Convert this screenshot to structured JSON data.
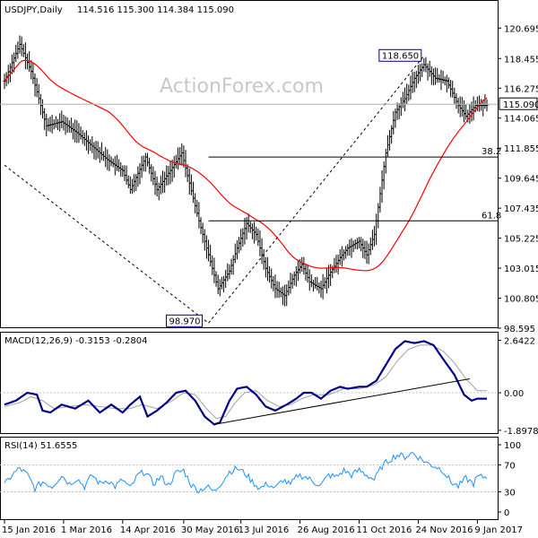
{
  "chart_data": [
    {
      "type": "ohlc",
      "panel": "price",
      "title_symbol": "USDJPY,Daily",
      "title_ohlc": "114.516 115.300 114.384 115.090",
      "watermark": "ActionForex.com",
      "ylim": [
        98.595,
        122.5
      ],
      "yticks": [
        "120.695",
        "118.455",
        "116.275",
        "114.065",
        "111.855",
        "109.645",
        "107.435",
        "105.225",
        "103.015",
        "100.805",
        "98.595"
      ],
      "current_price_label": "115.090",
      "current_price": 115.09,
      "annotations": {
        "high_label": "118.650",
        "low_label": "98.970",
        "fib_382_label": "38.2",
        "fib_618_label": "61.8",
        "fib_382_value": 111.2,
        "fib_618_value": 106.5
      },
      "moving_average_color": "#ff0000",
      "bar_color": "#000000",
      "closes_anchors": [
        [
          0,
          116.8
        ],
        [
          8,
          119.5
        ],
        [
          14,
          117.5
        ],
        [
          22,
          113.5
        ],
        [
          30,
          113.8
        ],
        [
          38,
          113.0
        ],
        [
          46,
          112.0
        ],
        [
          54,
          111.0
        ],
        [
          62,
          110.2
        ],
        [
          66,
          108.8
        ],
        [
          74,
          111.2
        ],
        [
          80,
          108.8
        ],
        [
          86,
          110.0
        ],
        [
          93,
          111.5
        ],
        [
          102,
          106.5
        ],
        [
          107,
          104.0
        ],
        [
          112,
          101.5
        ],
        [
          118,
          102.8
        ],
        [
          122,
          104.5
        ],
        [
          127,
          106.3
        ],
        [
          132,
          105.5
        ],
        [
          137,
          103.0
        ],
        [
          142,
          101.5
        ],
        [
          147,
          101.0
        ],
        [
          152,
          102.5
        ],
        [
          156,
          103.3
        ],
        [
          160,
          102.0
        ],
        [
          166,
          101.5
        ],
        [
          170,
          102.5
        ],
        [
          176,
          103.8
        ],
        [
          180,
          104.5
        ],
        [
          186,
          105.0
        ],
        [
          190,
          104.0
        ],
        [
          194,
          105.5
        ],
        [
          200,
          111.5
        ],
        [
          205,
          114.5
        ],
        [
          210,
          115.5
        ],
        [
          215,
          117.0
        ],
        [
          220,
          118.0
        ],
        [
          226,
          117.0
        ],
        [
          232,
          116.8
        ],
        [
          238,
          115.0
        ],
        [
          242,
          114.2
        ],
        [
          247,
          115.0
        ]
      ]
    },
    {
      "type": "line",
      "panel": "macd",
      "title": "MACD(12,26,9) -0.3153 -0.2804",
      "yticks": [
        "2.6422",
        "0.00",
        "-1.8978"
      ],
      "ylim": [
        -1.9,
        2.8
      ],
      "macd_color": "#00008b",
      "signal_color": "#a0a0a0",
      "macd_anchors": [
        [
          0,
          -0.6
        ],
        [
          6,
          -0.4
        ],
        [
          12,
          0.0
        ],
        [
          17,
          -0.1
        ],
        [
          20,
          -0.9
        ],
        [
          24,
          -1.0
        ],
        [
          30,
          -0.6
        ],
        [
          37,
          -0.8
        ],
        [
          44,
          -0.4
        ],
        [
          50,
          -1.0
        ],
        [
          56,
          -0.6
        ],
        [
          62,
          -1.0
        ],
        [
          66,
          -0.6
        ],
        [
          71,
          -0.2
        ],
        [
          75,
          -1.2
        ],
        [
          80,
          -0.9
        ],
        [
          85,
          -0.5
        ],
        [
          90,
          0.0
        ],
        [
          95,
          0.1
        ],
        [
          100,
          -0.4
        ],
        [
          105,
          -1.2
        ],
        [
          110,
          -1.6
        ],
        [
          113,
          -1.5
        ],
        [
          118,
          -0.4
        ],
        [
          122,
          0.2
        ],
        [
          127,
          0.3
        ],
        [
          132,
          -0.1
        ],
        [
          137,
          -0.7
        ],
        [
          142,
          -0.9
        ],
        [
          148,
          -0.6
        ],
        [
          153,
          -0.3
        ],
        [
          157,
          0.0
        ],
        [
          161,
          0.0
        ],
        [
          166,
          -0.3
        ],
        [
          171,
          0.1
        ],
        [
          176,
          0.3
        ],
        [
          180,
          0.2
        ],
        [
          186,
          0.3
        ],
        [
          190,
          0.3
        ],
        [
          195,
          0.6
        ],
        [
          200,
          1.4
        ],
        [
          205,
          2.2
        ],
        [
          210,
          2.6
        ],
        [
          215,
          2.5
        ],
        [
          220,
          2.6
        ],
        [
          225,
          2.4
        ],
        [
          230,
          1.7
        ],
        [
          236,
          0.9
        ],
        [
          241,
          -0.1
        ],
        [
          245,
          -0.4
        ],
        [
          248,
          -0.3
        ]
      ],
      "signal_anchors": [
        [
          0,
          -0.7
        ],
        [
          8,
          -0.5
        ],
        [
          14,
          -0.2
        ],
        [
          20,
          -0.4
        ],
        [
          26,
          -0.8
        ],
        [
          34,
          -0.7
        ],
        [
          42,
          -0.6
        ],
        [
          50,
          -0.7
        ],
        [
          58,
          -0.8
        ],
        [
          66,
          -0.8
        ],
        [
          72,
          -0.6
        ],
        [
          80,
          -0.8
        ],
        [
          88,
          -0.4
        ],
        [
          94,
          0.0
        ],
        [
          100,
          -0.1
        ],
        [
          106,
          -0.8
        ],
        [
          111,
          -1.3
        ],
        [
          116,
          -1.2
        ],
        [
          121,
          -0.5
        ],
        [
          126,
          0.0
        ],
        [
          132,
          0.1
        ],
        [
          138,
          -0.4
        ],
        [
          144,
          -0.7
        ],
        [
          150,
          -0.6
        ],
        [
          156,
          -0.3
        ],
        [
          162,
          -0.1
        ],
        [
          170,
          -0.1
        ],
        [
          178,
          0.2
        ],
        [
          186,
          0.2
        ],
        [
          194,
          0.4
        ],
        [
          200,
          0.8
        ],
        [
          206,
          1.6
        ],
        [
          212,
          2.2
        ],
        [
          218,
          2.4
        ],
        [
          224,
          2.4
        ],
        [
          230,
          2.1
        ],
        [
          236,
          1.5
        ],
        [
          242,
          0.7
        ],
        [
          248,
          0.1
        ]
      ]
    },
    {
      "type": "line",
      "panel": "rsi",
      "title": "RSI(14) 51.6555",
      "yticks": [
        "100",
        "70",
        "30",
        "0"
      ],
      "ylim": [
        0,
        100
      ],
      "line_color": "#1e90ff",
      "rsi_anchors": [
        [
          0,
          40
        ],
        [
          4,
          55
        ],
        [
          8,
          65
        ],
        [
          12,
          55
        ],
        [
          16,
          35
        ],
        [
          20,
          45
        ],
        [
          25,
          38
        ],
        [
          30,
          55
        ],
        [
          34,
          42
        ],
        [
          38,
          50
        ],
        [
          42,
          38
        ],
        [
          46,
          55
        ],
        [
          50,
          42
        ],
        [
          54,
          48
        ],
        [
          58,
          38
        ],
        [
          62,
          48
        ],
        [
          66,
          35
        ],
        [
          70,
          55
        ],
        [
          74,
          60
        ],
        [
          78,
          42
        ],
        [
          82,
          52
        ],
        [
          86,
          40
        ],
        [
          90,
          58
        ],
        [
          94,
          62
        ],
        [
          98,
          40
        ],
        [
          102,
          32
        ],
        [
          106,
          38
        ],
        [
          110,
          30
        ],
        [
          114,
          45
        ],
        [
          118,
          60
        ],
        [
          122,
          65
        ],
        [
          126,
          58
        ],
        [
          130,
          45
        ],
        [
          134,
          35
        ],
        [
          138,
          42
        ],
        [
          142,
          35
        ],
        [
          146,
          48
        ],
        [
          150,
          40
        ],
        [
          154,
          55
        ],
        [
          158,
          52
        ],
        [
          162,
          45
        ],
        [
          166,
          40
        ],
        [
          170,
          55
        ],
        [
          174,
          52
        ],
        [
          178,
          62
        ],
        [
          182,
          55
        ],
        [
          186,
          62
        ],
        [
          190,
          55
        ],
        [
          194,
          48
        ],
        [
          198,
          68
        ],
        [
          202,
          78
        ],
        [
          206,
          85
        ],
        [
          210,
          82
        ],
        [
          214,
          88
        ],
        [
          218,
          80
        ],
        [
          222,
          72
        ],
        [
          226,
          68
        ],
        [
          230,
          62
        ],
        [
          234,
          45
        ],
        [
          238,
          38
        ],
        [
          242,
          50
        ],
        [
          246,
          42
        ],
        [
          248,
          52
        ]
      ]
    }
  ],
  "x_axis": {
    "labels": [
      "15 Jan 2016",
      "1 Mar 2016",
      "14 Apr 2016",
      "30 May 2016",
      "13 Jul 2016",
      "26 Aug 2016",
      "11 Oct 2016",
      "24 Nov 2016",
      "9 Jan 2017"
    ],
    "label_bar_index": [
      0,
      31,
      62,
      94,
      124,
      155,
      186,
      217,
      248
    ],
    "total_bars": 254
  }
}
